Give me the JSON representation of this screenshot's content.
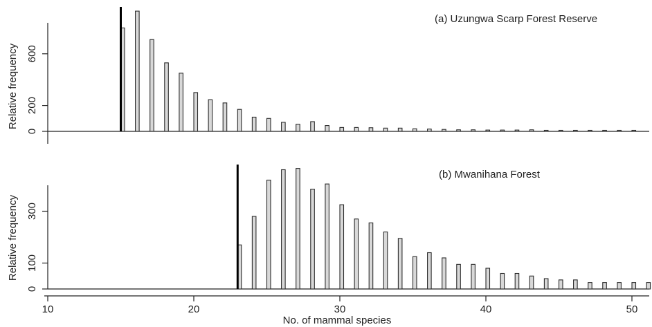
{
  "chart_data": [
    {
      "type": "bar",
      "title": "(a) Uzungwa Scarp Forest Reserve",
      "ylabel": "Relative frequency",
      "xlabel": "",
      "y_ticks": [
        0,
        200,
        600
      ],
      "y_tick_labels": [
        "0",
        "200",
        "600"
      ],
      "ylim": [
        0,
        920
      ],
      "xlim": [
        10,
        51
      ],
      "observed_value": 15,
      "x": [
        15,
        16,
        17,
        18,
        19,
        20,
        21,
        22,
        23,
        24,
        25,
        26,
        27,
        28,
        29,
        30,
        31,
        32,
        33,
        34,
        35,
        36,
        37,
        38,
        39,
        40,
        41,
        42,
        43,
        44,
        45,
        46,
        47,
        48,
        49,
        50
      ],
      "values": [
        800,
        930,
        710,
        530,
        450,
        300,
        245,
        220,
        170,
        110,
        100,
        70,
        55,
        75,
        45,
        30,
        30,
        28,
        25,
        25,
        20,
        18,
        15,
        12,
        12,
        10,
        10,
        10,
        12,
        8,
        8,
        8,
        8,
        8,
        8,
        8
      ]
    },
    {
      "type": "bar",
      "title": "(b) Mwanihana Forest",
      "ylabel": "Relative frequency",
      "xlabel": "No. of mammal species",
      "y_ticks": [
        0,
        100,
        300
      ],
      "y_tick_labels": [
        "0",
        "100",
        "300"
      ],
      "ylim": [
        0,
        470
      ],
      "xlim": [
        10,
        51
      ],
      "x_ticks": [
        10,
        20,
        30,
        40,
        50
      ],
      "x_tick_labels": [
        "10",
        "20",
        "30",
        "40",
        "50"
      ],
      "observed_value": 23,
      "x": [
        23,
        24,
        25,
        26,
        27,
        28,
        29,
        30,
        31,
        32,
        33,
        34,
        35,
        36,
        37,
        38,
        39,
        40,
        41,
        42,
        43,
        44,
        45,
        46,
        47,
        48,
        49,
        50,
        51
      ],
      "values": [
        170,
        280,
        420,
        460,
        465,
        385,
        405,
        325,
        270,
        255,
        220,
        195,
        125,
        140,
        120,
        95,
        95,
        80,
        60,
        60,
        50,
        40,
        35,
        35,
        25,
        25,
        25,
        25,
        25
      ]
    }
  ]
}
